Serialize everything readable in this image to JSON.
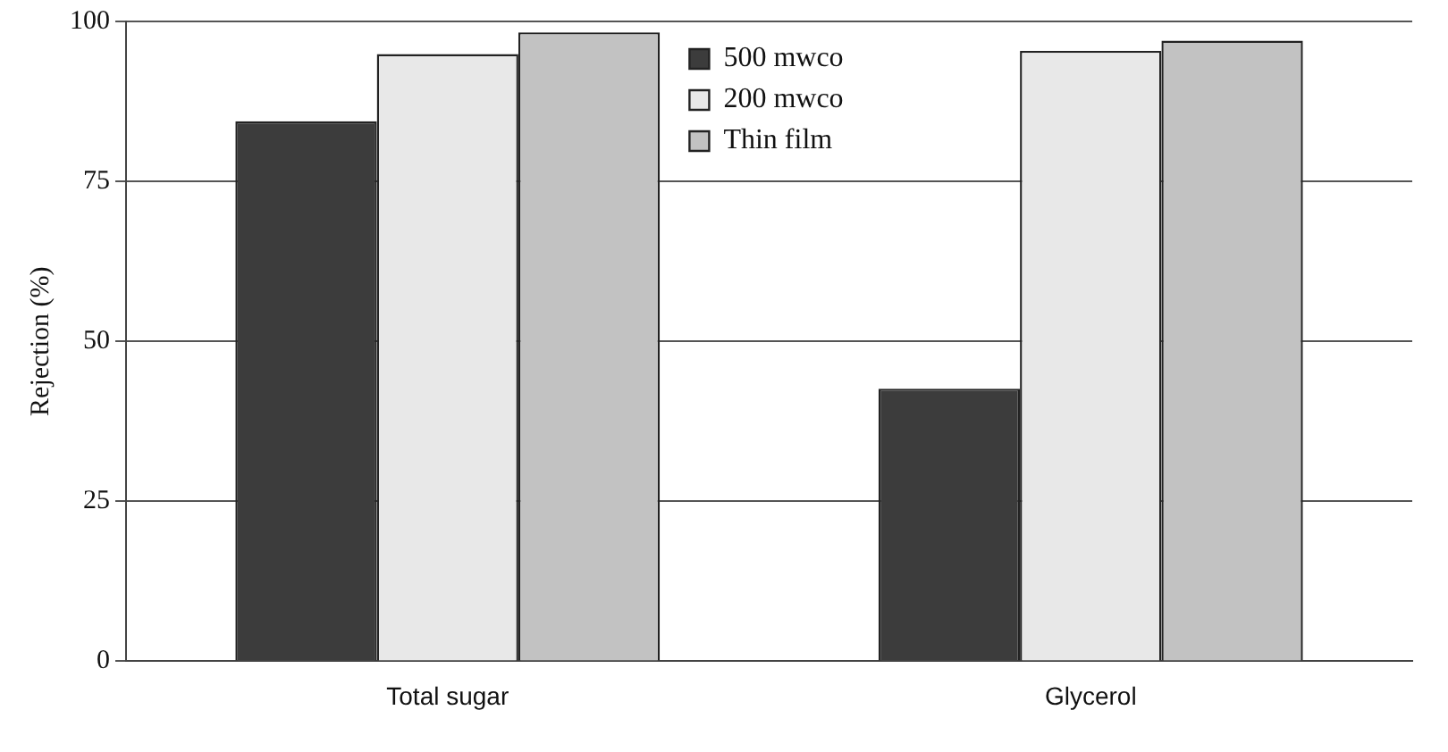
{
  "chart_data": {
    "type": "bar",
    "ylabel": "Rejection (%)",
    "categories": [
      "Total sugar",
      "Glycerol"
    ],
    "series": [
      {
        "name": "500 mwco",
        "color": "#3c3c3c",
        "values": [
          84.4,
          42.6
        ]
      },
      {
        "name": "200 mwco",
        "color": "#e8e8e8",
        "values": [
          94.9,
          95.4
        ]
      },
      {
        "name": "Thin film",
        "color": "#c2c2c2",
        "values": [
          98.3,
          97.0
        ]
      }
    ],
    "ylim": [
      0,
      100
    ],
    "yticks": [
      0,
      25,
      50,
      75,
      100
    ],
    "grid": "y",
    "legend": "top"
  }
}
